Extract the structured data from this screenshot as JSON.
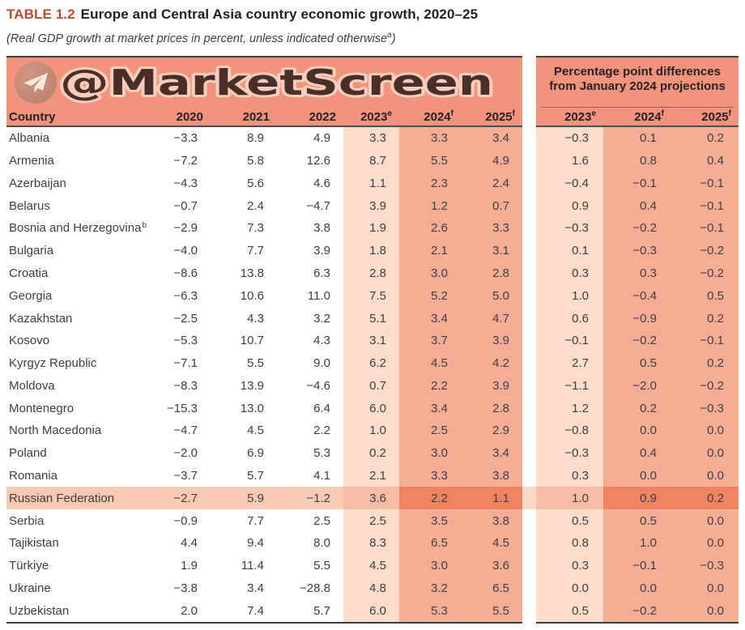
{
  "header": {
    "table_label": "TABLE 1.2",
    "title": "Europe and Central Asia country economic growth, 2020–25",
    "subtitle": "(Real GDP growth at market prices in percent, unless indicated otherwise",
    "subtitle_sup": "a",
    "subtitle_close": ")"
  },
  "watermark": {
    "handle": "@MarketScreen",
    "icon": "telegram-icon"
  },
  "left_table": {
    "country_label": "Country",
    "columns": [
      {
        "label": "2020",
        "sup": ""
      },
      {
        "label": "2021",
        "sup": ""
      },
      {
        "label": "2022",
        "sup": ""
      },
      {
        "label": "2023",
        "sup": "e"
      },
      {
        "label": "2024",
        "sup": "f"
      },
      {
        "label": "2025",
        "sup": "f"
      }
    ]
  },
  "right_table": {
    "title_line1": "Percentage point differences",
    "title_line2": "from January 2024 projections",
    "columns": [
      {
        "label": "2023",
        "sup": "e"
      },
      {
        "label": "2024",
        "sup": "f"
      },
      {
        "label": "2025",
        "sup": "f"
      }
    ]
  },
  "rows": [
    {
      "country": "Albania",
      "sup": "",
      "highlight": false,
      "values": [
        "−3.3",
        "8.9",
        "4.9",
        "3.3",
        "3.3",
        "3.4"
      ],
      "diffs": [
        "−0.3",
        "0.1",
        "0.2"
      ]
    },
    {
      "country": "Armenia",
      "sup": "",
      "highlight": false,
      "values": [
        "−7.2",
        "5.8",
        "12.6",
        "8.7",
        "5.5",
        "4.9"
      ],
      "diffs": [
        "1.6",
        "0.8",
        "0.4"
      ]
    },
    {
      "country": "Azerbaijan",
      "sup": "",
      "highlight": false,
      "values": [
        "−4.3",
        "5.6",
        "4.6",
        "1.1",
        "2.3",
        "2.4"
      ],
      "diffs": [
        "−0.4",
        "−0.1",
        "−0.1"
      ]
    },
    {
      "country": "Belarus",
      "sup": "",
      "highlight": false,
      "values": [
        "−0.7",
        "2.4",
        "−4.7",
        "3.9",
        "1.2",
        "0.7"
      ],
      "diffs": [
        "0.9",
        "0.4",
        "−0.1"
      ]
    },
    {
      "country": "Bosnia and Herzegovina",
      "sup": "b",
      "highlight": false,
      "values": [
        "−2.9",
        "7.3",
        "3.8",
        "1.9",
        "2.6",
        "3.3"
      ],
      "diffs": [
        "−0.3",
        "−0.2",
        "−0.1"
      ]
    },
    {
      "country": "Bulgaria",
      "sup": "",
      "highlight": false,
      "values": [
        "−4.0",
        "7.7",
        "3.9",
        "1.8",
        "2.1",
        "3.1"
      ],
      "diffs": [
        "0.1",
        "−0.3",
        "−0.2"
      ]
    },
    {
      "country": "Croatia",
      "sup": "",
      "highlight": false,
      "values": [
        "−8.6",
        "13.8",
        "6.3",
        "2.8",
        "3.0",
        "2.8"
      ],
      "diffs": [
        "0.3",
        "0.3",
        "−0.2"
      ]
    },
    {
      "country": "Georgia",
      "sup": "",
      "highlight": false,
      "values": [
        "−6.3",
        "10.6",
        "11.0",
        "7.5",
        "5.2",
        "5.0"
      ],
      "diffs": [
        "1.0",
        "−0.4",
        "0.5"
      ]
    },
    {
      "country": "Kazakhstan",
      "sup": "",
      "highlight": false,
      "values": [
        "−2.5",
        "4.3",
        "3.2",
        "5.1",
        "3.4",
        "4.7"
      ],
      "diffs": [
        "0.6",
        "−0.9",
        "0.2"
      ]
    },
    {
      "country": "Kosovo",
      "sup": "",
      "highlight": false,
      "values": [
        "−5.3",
        "10.7",
        "4.3",
        "3.1",
        "3.7",
        "3.9"
      ],
      "diffs": [
        "−0.1",
        "−0.2",
        "−0.1"
      ]
    },
    {
      "country": "Kyrgyz Republic",
      "sup": "",
      "highlight": false,
      "values": [
        "−7.1",
        "5.5",
        "9.0",
        "6.2",
        "4.5",
        "4.2"
      ],
      "diffs": [
        "2.7",
        "0.5",
        "0.2"
      ]
    },
    {
      "country": "Moldova",
      "sup": "",
      "highlight": false,
      "values": [
        "−8.3",
        "13.9",
        "−4.6",
        "0.7",
        "2.2",
        "3.9"
      ],
      "diffs": [
        "−1.1",
        "−2.0",
        "−0.2"
      ]
    },
    {
      "country": "Montenegro",
      "sup": "",
      "highlight": false,
      "values": [
        "−15.3",
        "13.0",
        "6.4",
        "6.0",
        "3.4",
        "2.8"
      ],
      "diffs": [
        "1.2",
        "0.2",
        "−0.3"
      ]
    },
    {
      "country": "North Macedonia",
      "sup": "",
      "highlight": false,
      "values": [
        "−4.7",
        "4.5",
        "2.2",
        "1.0",
        "2.5",
        "2.9"
      ],
      "diffs": [
        "−0.8",
        "0.0",
        "0.0"
      ]
    },
    {
      "country": "Poland",
      "sup": "",
      "highlight": false,
      "values": [
        "−2.0",
        "6.9",
        "5.3",
        "0.2",
        "3.0",
        "3.4"
      ],
      "diffs": [
        "−0.3",
        "0.4",
        "0.0"
      ]
    },
    {
      "country": "Romania",
      "sup": "",
      "highlight": false,
      "values": [
        "−3.7",
        "5.7",
        "4.1",
        "2.1",
        "3.3",
        "3.8"
      ],
      "diffs": [
        "0.3",
        "0.0",
        "0.0"
      ]
    },
    {
      "country": "Russian Federation",
      "sup": "",
      "highlight": true,
      "values": [
        "−2.7",
        "5.9",
        "−1.2",
        "3.6",
        "2.2",
        "1.1"
      ],
      "diffs": [
        "1.0",
        "0.9",
        "0.2"
      ]
    },
    {
      "country": "Serbia",
      "sup": "",
      "highlight": false,
      "values": [
        "−0.9",
        "7.7",
        "2.5",
        "2.5",
        "3.5",
        "3.8"
      ],
      "diffs": [
        "0.5",
        "0.5",
        "0.0"
      ]
    },
    {
      "country": "Tajikistan",
      "sup": "",
      "highlight": false,
      "values": [
        "4.4",
        "9.4",
        "8.0",
        "8.3",
        "6.5",
        "4.5"
      ],
      "diffs": [
        "0.8",
        "1.0",
        "0.0"
      ]
    },
    {
      "country": "Türkiye",
      "sup": "",
      "highlight": false,
      "values": [
        "1.9",
        "11.4",
        "5.5",
        "4.5",
        "3.0",
        "3.6"
      ],
      "diffs": [
        "0.3",
        "−0.1",
        "−0.3"
      ]
    },
    {
      "country": "Ukraine",
      "sup": "",
      "highlight": false,
      "values": [
        "−3.8",
        "3.4",
        "−28.8",
        "4.8",
        "3.2",
        "6.5"
      ],
      "diffs": [
        "0.0",
        "0.0",
        "0.0"
      ]
    },
    {
      "country": "Uzbekistan",
      "sup": "",
      "highlight": false,
      "values": [
        "2.0",
        "7.4",
        "5.7",
        "6.0",
        "5.3",
        "5.5"
      ],
      "diffs": [
        "0.5",
        "−0.2",
        "0.0"
      ]
    }
  ],
  "colors": {
    "accent_title": "#c4492c",
    "header_bg": "#f2937b",
    "band_2023": "#fcdcca",
    "band_2024_25": "#f5ad96",
    "highlight_row": "#fac9b1",
    "highlight_row_dark": "#f08362",
    "text": "#3f3e40"
  }
}
